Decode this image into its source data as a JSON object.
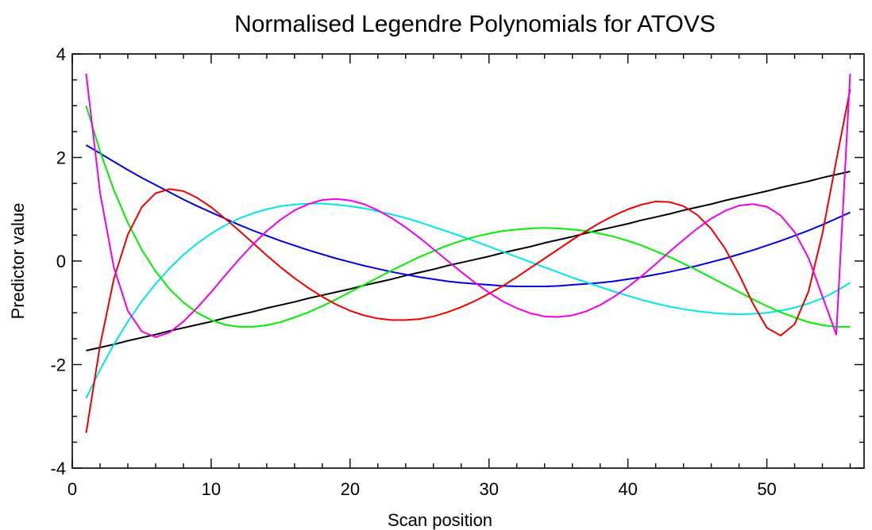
{
  "chart_data": {
    "type": "line",
    "title": "Normalised Legendre Polynomials for ATOVS",
    "xlabel": "Scan position",
    "ylabel": "Predictor value",
    "xlim": [
      0,
      57
    ],
    "ylim": [
      -4,
      4
    ],
    "grid": false,
    "legend": "none",
    "x_ticks": [
      0,
      10,
      20,
      30,
      40,
      50
    ],
    "x_tick_labels": [
      "0",
      "10",
      "20",
      "30",
      "40",
      "50"
    ],
    "y_ticks": [
      4,
      2,
      0,
      -2,
      -4
    ],
    "y_tick_labels": [
      "4",
      "2",
      "0",
      "-2",
      "-4"
    ],
    "x": [
      1,
      2,
      3,
      4,
      5,
      6,
      7,
      8,
      9,
      10,
      11,
      12,
      13,
      14,
      15,
      16,
      17,
      18,
      19,
      20,
      21,
      22,
      23,
      24,
      25,
      26,
      27,
      28,
      29,
      30,
      31,
      32,
      33,
      34,
      35,
      36,
      37,
      38,
      39,
      40,
      41,
      42,
      43,
      44,
      45,
      46,
      47,
      48,
      49,
      50,
      51,
      52,
      53,
      54,
      55,
      56
    ],
    "series": [
      {
        "color": "#000000",
        "values": [
          -1.73,
          -1.67,
          -1.61,
          -1.54,
          -1.48,
          -1.42,
          -1.35,
          -1.29,
          -1.23,
          -1.17,
          -1.1,
          -1.04,
          -0.98,
          -0.91,
          -0.85,
          -0.79,
          -0.72,
          -0.66,
          -0.6,
          -0.54,
          -0.47,
          -0.41,
          -0.35,
          -0.28,
          -0.22,
          -0.16,
          -0.09,
          -0.03,
          0.03,
          0.09,
          0.16,
          0.22,
          0.28,
          0.35,
          0.41,
          0.47,
          0.54,
          0.6,
          0.66,
          0.72,
          0.79,
          0.85,
          0.91,
          0.98,
          1.04,
          1.1,
          1.17,
          1.23,
          1.29,
          1.35,
          1.42,
          1.48,
          1.54,
          1.61,
          1.67,
          1.73
        ]
      },
      {
        "color": "#0000dd",
        "values": [
          2.24,
          2.08,
          1.92,
          1.76,
          1.61,
          1.47,
          1.33,
          1.19,
          1.06,
          0.94,
          0.82,
          0.7,
          0.59,
          0.49,
          0.39,
          0.3,
          0.21,
          0.13,
          0.05,
          -0.02,
          -0.09,
          -0.15,
          -0.21,
          -0.26,
          -0.31,
          -0.35,
          -0.39,
          -0.42,
          -0.44,
          -0.46,
          -0.48,
          -0.49,
          -0.49,
          -0.49,
          -0.48,
          -0.46,
          -0.44,
          -0.42,
          -0.39,
          -0.35,
          -0.31,
          -0.26,
          -0.21,
          -0.15,
          -0.09,
          -0.02,
          0.05,
          0.13,
          0.21,
          0.3,
          0.39,
          0.49,
          0.59,
          0.7,
          0.82,
          0.94
        ]
      },
      {
        "color": "#00e5e5",
        "values": [
          -2.65,
          -2.1,
          -1.61,
          -1.17,
          -0.78,
          -0.44,
          -0.14,
          0.12,
          0.34,
          0.53,
          0.69,
          0.82,
          0.92,
          1.0,
          1.06,
          1.09,
          1.11,
          1.11,
          1.09,
          1.06,
          1.02,
          0.96,
          0.9,
          0.83,
          0.75,
          0.66,
          0.57,
          0.48,
          0.38,
          0.28,
          0.18,
          0.08,
          -0.02,
          -0.12,
          -0.22,
          -0.32,
          -0.41,
          -0.5,
          -0.59,
          -0.67,
          -0.75,
          -0.82,
          -0.88,
          -0.93,
          -0.97,
          -1.0,
          -1.02,
          -1.03,
          -1.02,
          -1.0,
          -0.96,
          -0.9,
          -0.82,
          -0.72,
          -0.58,
          -0.42
        ]
      },
      {
        "color": "#00ee00",
        "values": [
          3.0,
          2.12,
          1.37,
          0.74,
          0.22,
          -0.2,
          -0.54,
          -0.8,
          -1.0,
          -1.14,
          -1.23,
          -1.27,
          -1.27,
          -1.24,
          -1.18,
          -1.09,
          -0.99,
          -0.87,
          -0.74,
          -0.6,
          -0.46,
          -0.32,
          -0.18,
          -0.05,
          0.08,
          0.19,
          0.3,
          0.39,
          0.47,
          0.53,
          0.58,
          0.61,
          0.63,
          0.64,
          0.63,
          0.61,
          0.58,
          0.53,
          0.47,
          0.39,
          0.3,
          0.19,
          0.08,
          -0.05,
          -0.18,
          -0.32,
          -0.46,
          -0.6,
          -0.74,
          -0.87,
          -0.99,
          -1.09,
          -1.18,
          -1.24,
          -1.27,
          -1.27
        ]
      },
      {
        "color": "#ee0000",
        "values": [
          -3.32,
          -1.63,
          -0.34,
          0.51,
          1.04,
          1.31,
          1.39,
          1.35,
          1.22,
          1.04,
          0.82,
          0.59,
          0.35,
          0.11,
          -0.12,
          -0.33,
          -0.52,
          -0.69,
          -0.84,
          -0.96,
          -1.05,
          -1.11,
          -1.14,
          -1.14,
          -1.12,
          -1.07,
          -0.99,
          -0.89,
          -0.77,
          -0.63,
          -0.48,
          -0.31,
          -0.13,
          0.05,
          0.23,
          0.41,
          0.58,
          0.74,
          0.88,
          1.0,
          1.09,
          1.15,
          1.14,
          1.06,
          0.89,
          0.62,
          0.24,
          -0.26,
          -0.82,
          -1.29,
          -1.44,
          -1.22,
          -0.59,
          0.53,
          1.94,
          3.32
        ]
      },
      {
        "color": "#ee00ee",
        "values": [
          3.62,
          1.32,
          -0.13,
          -0.96,
          -1.36,
          -1.47,
          -1.38,
          -1.17,
          -0.9,
          -0.6,
          -0.28,
          0.03,
          0.32,
          0.58,
          0.8,
          0.98,
          1.1,
          1.18,
          1.2,
          1.17,
          1.1,
          0.98,
          0.83,
          0.65,
          0.45,
          0.23,
          0.01,
          -0.21,
          -0.42,
          -0.61,
          -0.78,
          -0.91,
          -1.01,
          -1.07,
          -1.08,
          -1.05,
          -0.97,
          -0.85,
          -0.69,
          -0.5,
          -0.29,
          -0.06,
          0.18,
          0.41,
          0.63,
          0.82,
          0.97,
          1.07,
          1.1,
          1.05,
          0.88,
          0.56,
          0.06,
          -0.68,
          -1.42,
          3.62
        ]
      }
    ]
  }
}
